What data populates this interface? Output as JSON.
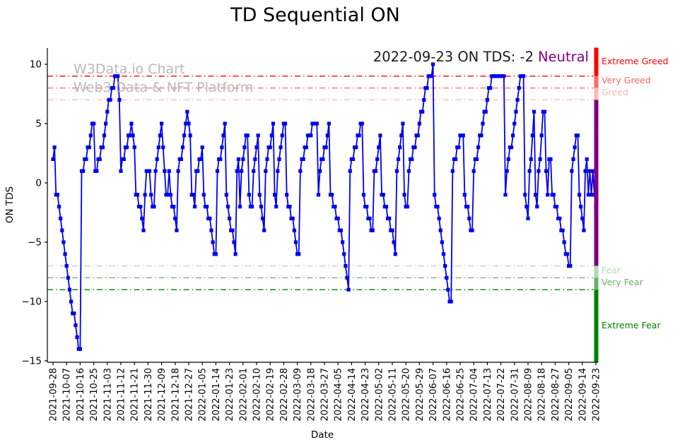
{
  "chart": {
    "title": "TD Sequential ON",
    "annotation": {
      "date_text": "2022-09-23 ON TDS: -2",
      "sentiment": "Neutral",
      "sentiment_color": "#800080"
    },
    "watermark": {
      "line1": "W3Data.io Chart",
      "line2": "Web3 Data & NFT Platform"
    },
    "axes": {
      "x_label": "Date",
      "y_label": "ON TDS",
      "y_ticks": [
        10,
        5,
        0,
        -5,
        -10,
        -15
      ],
      "y_lim": [
        -15.1,
        11.4
      ],
      "x_tick_interval_days": 9
    },
    "thresholds": [
      {
        "value": 9,
        "label": "Extreme Greed",
        "color": "#ff0000"
      },
      {
        "value": 8,
        "label": "Very Greed",
        "color": "#ff6666"
      },
      {
        "value": 7,
        "label": "Greed",
        "color": "#ffb8b8"
      },
      {
        "value": -7,
        "label": "Fear",
        "color": "#b3d9b3"
      },
      {
        "value": -8,
        "label": "Very Fear",
        "color": "#66b266"
      },
      {
        "value": -9,
        "label": "Extreme Fear",
        "color": "#008000"
      }
    ],
    "zone_bar": {
      "segments": [
        {
          "from": 11.4,
          "to": 9,
          "color": "#ff0000"
        },
        {
          "from": 9,
          "to": 8,
          "color": "#ff6666"
        },
        {
          "from": 8,
          "to": 7,
          "color": "#ffb8b8"
        },
        {
          "from": 7,
          "to": -7,
          "color": "#800080"
        },
        {
          "from": -7,
          "to": -8,
          "color": "#b3d9b3"
        },
        {
          "from": -8,
          "to": -9,
          "color": "#66b266"
        },
        {
          "from": -9,
          "to": -15.1,
          "color": "#008000"
        }
      ]
    },
    "chart_data": {
      "type": "line",
      "series_name": "ON TDS",
      "line_color": "#0000f0",
      "marker": "square",
      "start_date": "2021-09-28",
      "end_date": "2022-09-23",
      "final_value": -2,
      "x_tick_labels": [
        "2021-09-28",
        "2021-10-07",
        "2021-10-16",
        "2021-10-25",
        "2021-11-03",
        "2021-11-12",
        "2021-11-21",
        "2021-11-30",
        "2021-12-09",
        "2021-12-18",
        "2021-12-27",
        "2022-01-05",
        "2022-01-14",
        "2022-01-23",
        "2022-02-01",
        "2022-02-10",
        "2022-02-19",
        "2022-02-28",
        "2022-03-09",
        "2022-03-18",
        "2022-03-27",
        "2022-04-05",
        "2022-04-14",
        "2022-04-23",
        "2022-05-02",
        "2022-05-11",
        "2022-05-20",
        "2022-05-29",
        "2022-06-07",
        "2022-06-16",
        "2022-06-25",
        "2022-07-04",
        "2022-07-13",
        "2022-07-22",
        "2022-07-31",
        "2022-08-09",
        "2022-08-18",
        "2022-08-27",
        "2022-09-05",
        "2022-09-14",
        "2022-09-23"
      ],
      "values": [
        2,
        3,
        -1,
        -1,
        -2,
        -3,
        -4,
        -5,
        -6,
        -7,
        -8,
        -9,
        -10,
        -11,
        -11,
        -12,
        -13,
        -14,
        -14,
        1,
        1,
        2,
        2,
        3,
        3,
        4,
        5,
        5,
        1,
        1,
        2,
        2,
        3,
        3,
        4,
        5,
        6,
        7,
        7,
        8,
        8,
        9,
        9,
        9,
        7,
        1,
        2,
        2,
        3,
        3,
        4,
        4,
        5,
        4,
        3,
        -1,
        -1,
        -2,
        -2,
        -3,
        -4,
        -1,
        1,
        1,
        1,
        -1,
        -2,
        -2,
        1,
        2,
        3,
        4,
        5,
        3,
        1,
        -1,
        -1,
        1,
        -1,
        -2,
        -2,
        -3,
        -4,
        1,
        2,
        2,
        3,
        4,
        5,
        6,
        5,
        4,
        -1,
        -1,
        -2,
        1,
        1,
        2,
        2,
        3,
        -1,
        -2,
        -2,
        -3,
        -3,
        -4,
        -5,
        -6,
        -6,
        1,
        2,
        2,
        3,
        4,
        5,
        -1,
        -2,
        -3,
        -4,
        -4,
        -5,
        -6,
        1,
        2,
        -2,
        1,
        2,
        3,
        4,
        4,
        -1,
        -2,
        -2,
        1,
        2,
        3,
        4,
        -1,
        -2,
        -3,
        -4,
        1,
        2,
        3,
        3,
        4,
        5,
        -1,
        -2,
        1,
        2,
        3,
        4,
        5,
        5,
        -1,
        -2,
        -2,
        -3,
        -3,
        -4,
        -5,
        -6,
        -6,
        1,
        2,
        2,
        3,
        3,
        4,
        4,
        4,
        5,
        5,
        5,
        5,
        -1,
        1,
        2,
        2,
        3,
        3,
        4,
        5,
        -1,
        -1,
        -2,
        -2,
        -3,
        -3,
        -4,
        -4,
        -5,
        -6,
        -7,
        -8,
        -9,
        1,
        2,
        2,
        3,
        3,
        4,
        4,
        5,
        5,
        -1,
        -2,
        -2,
        -3,
        -3,
        -4,
        -4,
        1,
        1,
        2,
        3,
        4,
        -1,
        -1,
        -2,
        -2,
        -3,
        -3,
        -4,
        -4,
        -5,
        -6,
        1,
        2,
        3,
        4,
        5,
        -1,
        -2,
        -2,
        1,
        2,
        2,
        3,
        3,
        4,
        4,
        5,
        6,
        6,
        7,
        8,
        8,
        9,
        9,
        9,
        10,
        -1,
        -2,
        -2,
        -3,
        -4,
        -5,
        -6,
        -7,
        -8,
        -9,
        -10,
        -10,
        1,
        2,
        2,
        3,
        3,
        4,
        4,
        4,
        -1,
        -2,
        -2,
        -3,
        -4,
        -4,
        1,
        2,
        2,
        3,
        4,
        4,
        5,
        6,
        6,
        7,
        8,
        8,
        9,
        9,
        9,
        9,
        9,
        9,
        9,
        9,
        9,
        -1,
        1,
        2,
        3,
        3,
        4,
        5,
        6,
        7,
        8,
        9,
        9,
        9,
        -1,
        -2,
        -3,
        1,
        2,
        4,
        6,
        -1,
        -2,
        1,
        2,
        4,
        6,
        6,
        1,
        -1,
        2,
        2,
        -1,
        -1,
        -2,
        -2,
        -3,
        -3,
        -4,
        -4,
        -5,
        -6,
        -6,
        -7,
        -7,
        1,
        2,
        3,
        4,
        4,
        -1,
        -2,
        -3,
        -4,
        1,
        2,
        -1,
        1,
        -1,
        1,
        -1,
        -2
      ]
    }
  }
}
